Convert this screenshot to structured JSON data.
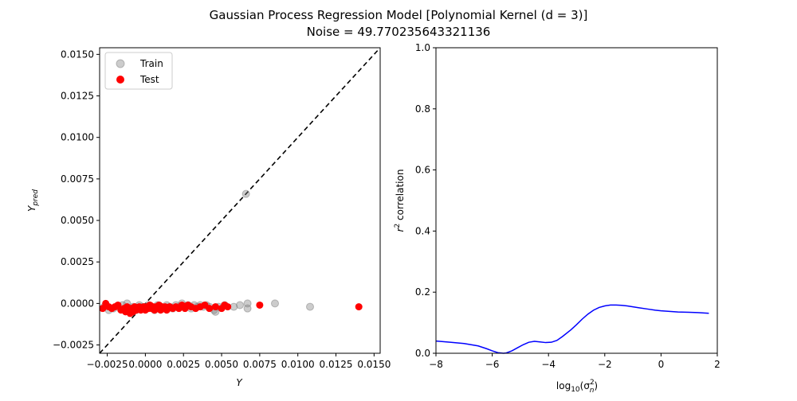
{
  "figure": {
    "title_line1": "Gaussian Process Regression Model [Polynomial Kernel (d = 3)]",
    "title_line2": "Noise = 49.770235643321136"
  },
  "chart_data": [
    {
      "type": "scatter",
      "xlabel": "Y",
      "ylabel": "Y_pred",
      "xlim": [
        -0.003,
        0.0154
      ],
      "ylim": [
        -0.003,
        0.0154
      ],
      "x_ticks": [
        -0.0025,
        0.0,
        0.0025,
        0.005,
        0.0075,
        0.01,
        0.0125,
        0.015
      ],
      "x_tick_labels": [
        "−0.0025",
        "0.0000",
        "0.0025",
        "0.0050",
        "0.0075",
        "0.0100",
        "0.0125",
        "0.0150"
      ],
      "y_ticks": [
        -0.0025,
        0.0,
        0.0025,
        0.005,
        0.0075,
        0.01,
        0.0125,
        0.015
      ],
      "y_tick_labels": [
        "−0.0025",
        "0.0000",
        "0.0025",
        "0.0050",
        "0.0075",
        "0.0100",
        "0.0125",
        "0.0150"
      ],
      "legend": {
        "placement": "top-left",
        "entries": [
          "Train",
          "Test"
        ]
      },
      "identity_line": {
        "style": "dashed",
        "color": "#000000"
      },
      "series": [
        {
          "name": "Train",
          "color": "#808080",
          "opacity": 0.4,
          "points": [
            [
              -0.0027,
              -0.0002
            ],
            [
              -0.0024,
              -0.0004
            ],
            [
              -0.0021,
              -0.0003
            ],
            [
              -0.0018,
              -0.0002
            ],
            [
              -0.0015,
              -0.0001
            ],
            [
              -0.0012,
              0.0
            ],
            [
              -0.001,
              -0.0003
            ],
            [
              -0.0008,
              -0.0002
            ],
            [
              -0.0006,
              -0.0004
            ],
            [
              -0.0004,
              -0.0001
            ],
            [
              -0.0002,
              -0.0002
            ],
            [
              0.0,
              -0.0003
            ],
            [
              0.0002,
              -0.0001
            ],
            [
              0.0004,
              -0.0002
            ],
            [
              0.0006,
              -0.0004
            ],
            [
              0.0008,
              -0.0001
            ],
            [
              0.001,
              -0.0002
            ],
            [
              0.0012,
              -0.0003
            ],
            [
              0.0014,
              -0.0001
            ],
            [
              0.0016,
              -0.0002
            ],
            [
              0.0018,
              -0.0003
            ],
            [
              0.002,
              -0.0001
            ],
            [
              0.0022,
              -0.0002
            ],
            [
              0.0024,
              0.0
            ],
            [
              0.0026,
              -0.0002
            ],
            [
              0.0028,
              -0.0001
            ],
            [
              0.003,
              -0.0003
            ],
            [
              0.0032,
              -0.0001
            ],
            [
              0.0034,
              -0.0002
            ],
            [
              0.0036,
              -0.0001
            ],
            [
              0.0038,
              -0.0002
            ],
            [
              0.004,
              -0.0001
            ],
            [
              0.0042,
              -0.0002
            ],
            [
              0.0045,
              -0.0004
            ],
            [
              0.0046,
              -0.0005
            ],
            [
              0.0048,
              -0.0002
            ],
            [
              0.0052,
              -0.0001
            ],
            [
              0.0058,
              -0.0002
            ],
            [
              0.0062,
              -0.0001
            ],
            [
              0.0067,
              -0.0003
            ],
            [
              0.0067,
              0.0
            ],
            [
              0.0085,
              0.0
            ],
            [
              0.0108,
              -0.0002
            ],
            [
              0.0066,
              0.0066
            ]
          ]
        },
        {
          "name": "Test",
          "color": "#ff0000",
          "opacity": 1.0,
          "points": [
            [
              -0.0028,
              -0.0003
            ],
            [
              -0.0026,
              0.0
            ],
            [
              -0.0024,
              -0.0002
            ],
            [
              -0.0022,
              -0.0003
            ],
            [
              -0.002,
              -0.0002
            ],
            [
              -0.0018,
              -0.0001
            ],
            [
              -0.0016,
              -0.0004
            ],
            [
              -0.0014,
              -0.0003
            ],
            [
              -0.0013,
              -0.0005
            ],
            [
              -0.0012,
              -0.0002
            ],
            [
              -0.0011,
              -0.0004
            ],
            [
              -0.001,
              -0.0006
            ],
            [
              -0.0009,
              -0.0003
            ],
            [
              -0.0008,
              -0.0005
            ],
            [
              -0.0007,
              -0.0002
            ],
            [
              -0.0006,
              -0.0004
            ],
            [
              -0.0005,
              -0.0003
            ],
            [
              -0.0004,
              -0.0002
            ],
            [
              -0.0003,
              -0.0004
            ],
            [
              -0.0002,
              -0.0003
            ],
            [
              -0.0001,
              -0.0002
            ],
            [
              0.0,
              -0.0004
            ],
            [
              0.0001,
              -0.0002
            ],
            [
              0.0002,
              -0.0003
            ],
            [
              0.0003,
              -0.0001
            ],
            [
              0.0004,
              -0.0003
            ],
            [
              0.0005,
              -0.0002
            ],
            [
              0.0006,
              -0.0004
            ],
            [
              0.0007,
              -0.0002
            ],
            [
              0.0008,
              -0.0003
            ],
            [
              0.0009,
              -0.0001
            ],
            [
              0.001,
              -0.0004
            ],
            [
              0.0011,
              -0.0002
            ],
            [
              0.0012,
              -0.0003
            ],
            [
              0.0013,
              -0.0002
            ],
            [
              0.0014,
              -0.0004
            ],
            [
              0.0015,
              -0.0003
            ],
            [
              0.0016,
              -0.0002
            ],
            [
              0.0018,
              -0.0003
            ],
            [
              0.002,
              -0.0002
            ],
            [
              0.0022,
              -0.0003
            ],
            [
              0.0024,
              -0.0001
            ],
            [
              0.0026,
              -0.0003
            ],
            [
              0.0028,
              -0.0001
            ],
            [
              0.003,
              -0.0002
            ],
            [
              0.0033,
              -0.0003
            ],
            [
              0.0036,
              -0.0002
            ],
            [
              0.0039,
              -0.0001
            ],
            [
              0.0042,
              -0.0003
            ],
            [
              0.0046,
              -0.0002
            ],
            [
              0.005,
              -0.0003
            ],
            [
              0.0052,
              -0.0001
            ],
            [
              0.0054,
              -0.0002
            ],
            [
              0.0075,
              -0.0001
            ],
            [
              0.014,
              -0.0002
            ]
          ]
        }
      ]
    },
    {
      "type": "line",
      "xlabel_main": "log",
      "xlabel_sub": "10",
      "xlabel_rest_open": "(σ",
      "xlabel_sub2": "n",
      "xlabel_sup2": "2",
      "xlabel_close": ")",
      "ylabel_var": "r",
      "ylabel_sup": "2",
      "ylabel_rest": " correlation",
      "xlim": [
        -8,
        2
      ],
      "ylim": [
        0,
        1
      ],
      "x_ticks": [
        -8,
        -6,
        -4,
        -2,
        0,
        2
      ],
      "x_tick_labels": [
        "−8",
        "−6",
        "−4",
        "−2",
        "0",
        "2"
      ],
      "y_ticks": [
        0,
        0.2,
        0.4,
        0.6,
        0.8,
        1.0
      ],
      "y_tick_labels": [
        "0.0",
        "0.2",
        "0.4",
        "0.6",
        "0.8",
        "1.0"
      ],
      "series": [
        {
          "color": "#0000ff",
          "x": [
            -8,
            -7.5,
            -7,
            -6.5,
            -6.2,
            -6,
            -5.8,
            -5.6,
            -5.5,
            -5.3,
            -5.1,
            -4.9,
            -4.7,
            -4.5,
            -4.3,
            -4.1,
            -3.9,
            -3.7,
            -3.5,
            -3.2,
            -3.0,
            -2.8,
            -2.6,
            -2.4,
            -2.2,
            -2.0,
            -1.8,
            -1.6,
            -1.4,
            -1.2,
            -1.0,
            -0.8,
            -0.5,
            -0.2,
            0.0,
            0.3,
            0.6,
            1.0,
            1.3,
            1.7
          ],
          "y": [
            0.04,
            0.036,
            0.032,
            0.024,
            0.015,
            0.008,
            0.002,
            0.0,
            0.001,
            0.008,
            0.018,
            0.028,
            0.036,
            0.039,
            0.037,
            0.035,
            0.036,
            0.042,
            0.055,
            0.077,
            0.094,
            0.112,
            0.128,
            0.141,
            0.15,
            0.155,
            0.158,
            0.158,
            0.157,
            0.155,
            0.152,
            0.149,
            0.145,
            0.141,
            0.139,
            0.137,
            0.135,
            0.134,
            0.133,
            0.131
          ]
        }
      ]
    }
  ]
}
